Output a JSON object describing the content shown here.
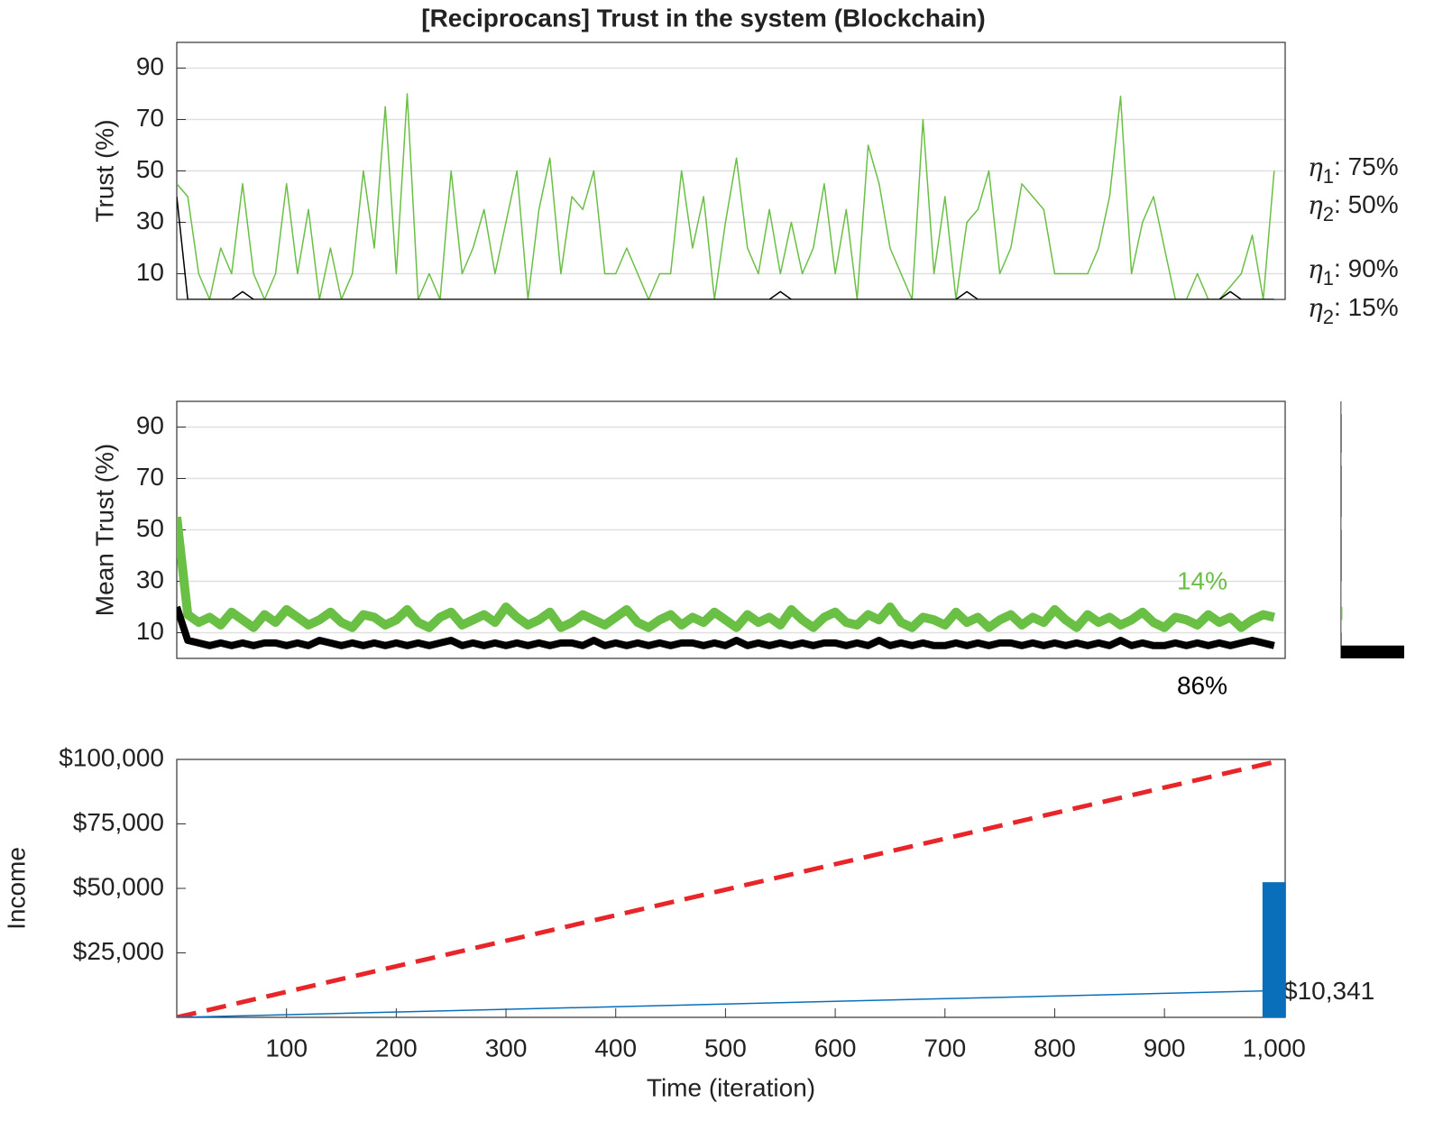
{
  "chart_data": [
    {
      "type": "line",
      "title": "[Reciprocans] Trust in the system (Blockchain)",
      "ylabel": "Trust (%)",
      "xlim": [
        0,
        1010
      ],
      "ylim": [
        0,
        100
      ],
      "yticks": [
        10,
        30,
        50,
        70,
        90
      ],
      "grid": true,
      "x": [
        0,
        10,
        20,
        30,
        40,
        50,
        60,
        70,
        80,
        90,
        100,
        110,
        120,
        130,
        140,
        150,
        160,
        170,
        180,
        190,
        200,
        210,
        220,
        230,
        240,
        250,
        260,
        270,
        280,
        290,
        300,
        310,
        320,
        330,
        340,
        350,
        360,
        370,
        380,
        390,
        400,
        410,
        420,
        430,
        440,
        450,
        460,
        470,
        480,
        490,
        500,
        510,
        520,
        530,
        540,
        550,
        560,
        570,
        580,
        590,
        600,
        610,
        620,
        630,
        640,
        650,
        660,
        670,
        680,
        690,
        700,
        710,
        720,
        730,
        740,
        750,
        760,
        770,
        780,
        790,
        800,
        810,
        820,
        830,
        840,
        850,
        860,
        870,
        880,
        890,
        900,
        910,
        920,
        930,
        940,
        950,
        960,
        970,
        980,
        990,
        1000
      ],
      "series": [
        {
          "color": "#6abf45",
          "width": 1.5,
          "values": [
            45,
            40,
            10,
            0,
            20,
            10,
            45,
            10,
            0,
            10,
            45,
            10,
            35,
            0,
            20,
            0,
            10,
            50,
            20,
            75,
            10,
            80,
            0,
            10,
            0,
            50,
            10,
            20,
            35,
            10,
            30,
            50,
            0,
            35,
            55,
            10,
            40,
            35,
            50,
            10,
            10,
            20,
            10,
            0,
            10,
            10,
            50,
            20,
            40,
            0,
            30,
            55,
            20,
            10,
            35,
            10,
            30,
            10,
            20,
            45,
            10,
            35,
            0,
            60,
            45,
            20,
            10,
            0,
            70,
            10,
            40,
            0,
            30,
            35,
            50,
            10,
            20,
            45,
            40,
            35,
            10,
            10,
            10,
            10,
            20,
            40,
            79,
            10,
            30,
            40,
            20,
            0,
            0,
            10,
            0,
            0,
            5,
            10,
            25,
            0,
            50
          ]
        },
        {
          "color": "#000000",
          "width": 1.5,
          "values": [
            40,
            0,
            0,
            0,
            0,
            0,
            3,
            0,
            0,
            0,
            0,
            0,
            0,
            0,
            0,
            0,
            0,
            0,
            0,
            0,
            0,
            0,
            0,
            0,
            0,
            0,
            0,
            0,
            0,
            0,
            0,
            0,
            0,
            0,
            0,
            0,
            0,
            0,
            0,
            0,
            0,
            0,
            0,
            0,
            0,
            0,
            0,
            0,
            0,
            0,
            0,
            0,
            0,
            0,
            0,
            3,
            0,
            0,
            0,
            0,
            0,
            0,
            0,
            0,
            0,
            0,
            0,
            0,
            0,
            0,
            0,
            0,
            3,
            0,
            0,
            0,
            0,
            0,
            0,
            0,
            0,
            0,
            0,
            0,
            0,
            0,
            0,
            0,
            0,
            0,
            0,
            0,
            0,
            0,
            0,
            0,
            3,
            0,
            0,
            0,
            0
          ]
        }
      ],
      "annotations": [
        {
          "symbol": "η",
          "subscript": "1",
          "text": ": 75%"
        },
        {
          "symbol": "η",
          "subscript": "2",
          "text": ": 50%"
        },
        {
          "symbol": "η",
          "subscript": "1",
          "text": ": 90%"
        },
        {
          "symbol": "η",
          "subscript": "2",
          "text": ": 15%"
        }
      ]
    },
    {
      "type": "line",
      "ylabel": "Mean Trust (%)",
      "xlim": [
        0,
        1010
      ],
      "ylim": [
        0,
        100
      ],
      "yticks": [
        10,
        30,
        50,
        70,
        90
      ],
      "grid": true,
      "x": [
        0,
        10,
        20,
        30,
        40,
        50,
        60,
        70,
        80,
        90,
        100,
        110,
        120,
        130,
        140,
        150,
        160,
        170,
        180,
        190,
        200,
        210,
        220,
        230,
        240,
        250,
        260,
        270,
        280,
        290,
        300,
        310,
        320,
        330,
        340,
        350,
        360,
        370,
        380,
        390,
        400,
        410,
        420,
        430,
        440,
        450,
        460,
        470,
        480,
        490,
        500,
        510,
        520,
        530,
        540,
        550,
        560,
        570,
        580,
        590,
        600,
        610,
        620,
        630,
        640,
        650,
        660,
        670,
        680,
        690,
        700,
        710,
        720,
        730,
        740,
        750,
        760,
        770,
        780,
        790,
        800,
        810,
        820,
        830,
        840,
        850,
        860,
        870,
        880,
        890,
        900,
        910,
        920,
        930,
        940,
        950,
        960,
        970,
        980,
        990,
        1000
      ],
      "series": [
        {
          "color": "#6abf45",
          "width": 10,
          "values": [
            55,
            17,
            14,
            16,
            13,
            18,
            15,
            12,
            17,
            14,
            19,
            16,
            13,
            15,
            18,
            14,
            12,
            17,
            16,
            13,
            15,
            19,
            14,
            12,
            16,
            18,
            13,
            15,
            17,
            14,
            20,
            16,
            13,
            15,
            18,
            12,
            14,
            17,
            15,
            13,
            16,
            19,
            14,
            12,
            15,
            17,
            13,
            16,
            14,
            18,
            15,
            12,
            17,
            14,
            16,
            13,
            19,
            15,
            12,
            16,
            18,
            14,
            13,
            17,
            15,
            20,
            14,
            12,
            16,
            15,
            13,
            18,
            14,
            16,
            12,
            15,
            17,
            13,
            16,
            14,
            19,
            15,
            12,
            17,
            14,
            16,
            13,
            15,
            18,
            14,
            12,
            16,
            15,
            13,
            17,
            14,
            16,
            12,
            15,
            17,
            16
          ]
        },
        {
          "color": "#000000",
          "width": 8,
          "values": [
            20,
            7,
            6,
            5,
            6,
            5,
            6,
            5,
            6,
            6,
            5,
            6,
            5,
            7,
            6,
            5,
            6,
            5,
            6,
            5,
            6,
            5,
            6,
            5,
            6,
            7,
            5,
            6,
            5,
            6,
            5,
            6,
            5,
            6,
            5,
            6,
            6,
            5,
            7,
            5,
            6,
            5,
            6,
            5,
            6,
            5,
            6,
            6,
            5,
            6,
            5,
            7,
            5,
            6,
            5,
            6,
            5,
            6,
            5,
            6,
            6,
            5,
            6,
            5,
            7,
            5,
            6,
            5,
            6,
            5,
            5,
            6,
            5,
            6,
            5,
            6,
            6,
            5,
            6,
            5,
            6,
            5,
            6,
            5,
            6,
            5,
            7,
            5,
            6,
            5,
            5,
            6,
            5,
            6,
            5,
            6,
            5,
            6,
            7,
            6,
            5
          ]
        }
      ],
      "annotations": [
        {
          "text": "14%",
          "color": "#6abf45"
        },
        {
          "text": "86%",
          "color": "#000000"
        }
      ]
    },
    {
      "type": "line",
      "ylabel": "Income",
      "xlabel": "Time (iteration)",
      "xlim": [
        0,
        1010
      ],
      "ylim": [
        0,
        100000
      ],
      "grid": false,
      "yticks": [
        {
          "value": 25000,
          "label": "$25,000"
        },
        {
          "value": 50000,
          "label": "$50,000"
        },
        {
          "value": 75000,
          "label": "$75,000"
        },
        {
          "value": 100000,
          "label": "$100,000"
        }
      ],
      "xticks": [
        100,
        200,
        300,
        400,
        500,
        600,
        700,
        800,
        900,
        {
          "value": 1000,
          "label": "1,000"
        }
      ],
      "series": [
        {
          "color": "#e8262a",
          "width": 5,
          "dashed": true,
          "x": [
            0,
            1000
          ],
          "values": [
            0,
            99000
          ]
        },
        {
          "color": "#0a6fba",
          "width": 1.5,
          "x": [
            0,
            1000
          ],
          "values": [
            0,
            10341
          ],
          "value_labels": [
            null,
            "$10,341"
          ]
        },
        {
          "color": "#0a6fba",
          "kind": "bar",
          "x": [
            1000
          ],
          "values": [
            52400
          ]
        }
      ]
    },
    {
      "type": "histogram",
      "orientation": "horizontal",
      "ylim": [
        0,
        100
      ],
      "xlim": [
        0,
        100
      ],
      "bins": [
        0,
        5,
        10,
        15,
        20,
        25,
        30,
        35,
        40,
        45,
        50,
        55,
        60,
        65,
        70,
        75,
        80,
        85,
        90,
        95,
        100
      ],
      "series": [
        {
          "color": "#6abf45",
          "values": [
            0,
            0,
            1,
            2,
            1,
            1,
            0,
            0,
            0,
            0,
            1,
            0,
            0,
            0,
            0,
            1,
            0,
            0,
            0,
            1
          ]
        },
        {
          "color": "#000000",
          "values": [
            100,
            0,
            0,
            0,
            0,
            0,
            0,
            0,
            0,
            0,
            0,
            0,
            0,
            0,
            0,
            0,
            0,
            0,
            0,
            0
          ]
        }
      ]
    }
  ]
}
